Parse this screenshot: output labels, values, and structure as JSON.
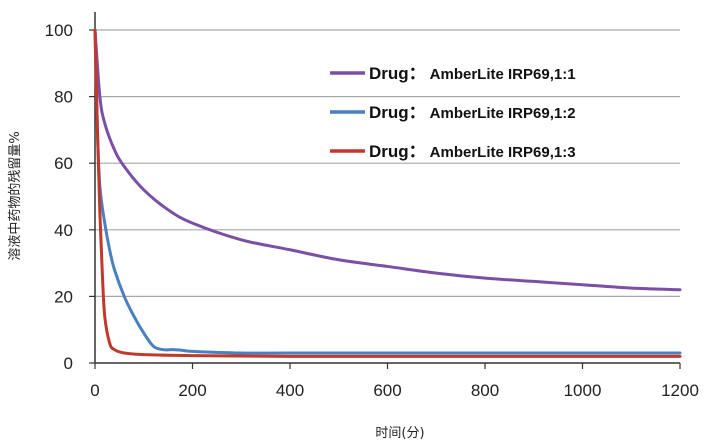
{
  "chart_data": {
    "type": "line",
    "xlabel": "时间(分)",
    "ylabel": "溶液中药物的残留量%",
    "xlim": [
      0,
      1200
    ],
    "ylim": [
      0,
      100
    ],
    "xticks": [
      0,
      200,
      400,
      600,
      800,
      1000,
      1200
    ],
    "yticks": [
      0,
      20,
      40,
      60,
      80,
      100
    ],
    "grid": "horizontal",
    "legend_position": "top-right",
    "series": [
      {
        "name_bold": "Drug：",
        "name_rest": "AmberLite IRP69,1:1",
        "color": "#7b4fa6",
        "x": [
          0,
          10,
          20,
          40,
          60,
          100,
          150,
          200,
          300,
          400,
          500,
          600,
          700,
          800,
          900,
          1000,
          1100,
          1200
        ],
        "y": [
          100,
          80,
          72,
          64,
          59,
          52,
          46,
          42,
          37,
          34,
          31,
          29,
          27,
          25.5,
          24.5,
          23.5,
          22.5,
          22
        ]
      },
      {
        "name_bold": "Drug：",
        "name_rest": "AmberLite IRP69,1:2",
        "color": "#4a7fc1",
        "x": [
          0,
          5,
          10,
          20,
          30,
          40,
          60,
          80,
          100,
          120,
          140,
          160,
          180,
          200,
          300,
          400,
          600,
          800,
          1000,
          1200
        ],
        "y": [
          100,
          70,
          53,
          42,
          34,
          28,
          20,
          14,
          9,
          5,
          4,
          4,
          3.8,
          3.5,
          3,
          3,
          3,
          3,
          3,
          3
        ]
      },
      {
        "name_bold": "Drug：",
        "name_rest": "AmberLite IRP69,1:3",
        "color": "#c0392b",
        "x": [
          0,
          5,
          10,
          15,
          20,
          30,
          40,
          60,
          100,
          200,
          400,
          600,
          800,
          1000,
          1200
        ],
        "y": [
          100,
          70,
          45,
          27,
          14,
          6,
          4,
          3,
          2.5,
          2.2,
          2,
          2,
          2,
          2,
          2
        ]
      }
    ]
  }
}
